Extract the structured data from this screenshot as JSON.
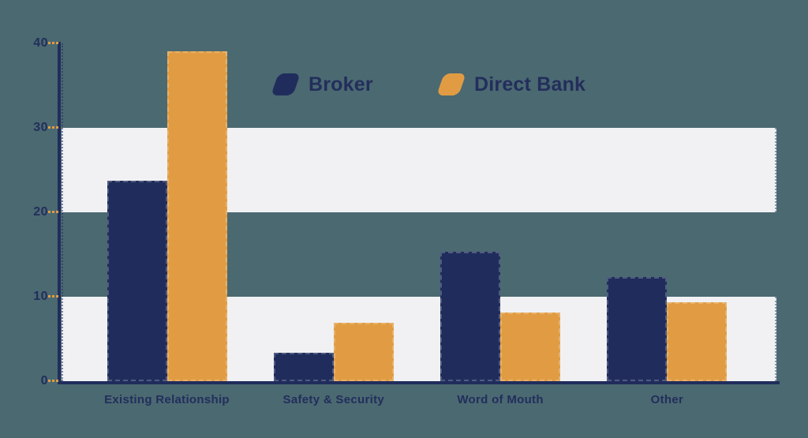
{
  "chart_data": {
    "type": "bar",
    "title": "",
    "xlabel": "",
    "ylabel": "",
    "categories": [
      "Existing Relationship",
      "Safety & Security",
      "Word of Mouth",
      "Other"
    ],
    "series": [
      {
        "name": "Broker",
        "color": "#202d5c",
        "values": [
          23.7,
          3.4,
          15.3,
          12.3
        ]
      },
      {
        "name": "Direct Bank",
        "color": "#e19c43",
        "values": [
          39.1,
          6.9,
          8.1,
          9.3
        ]
      }
    ],
    "ylim": [
      0,
      40
    ],
    "yticks": [
      0,
      10,
      20,
      30,
      40
    ],
    "legend_position": "top-center",
    "grid": "alternating horizontal background bands",
    "band_ranges": [
      [
        0,
        10
      ],
      [
        20,
        30
      ]
    ],
    "colors": {
      "background": "#4b6971",
      "band": "#f1f1f4",
      "axis": "#202d5c",
      "tick_mark": "#e19c43",
      "text": "#232e5c"
    }
  }
}
